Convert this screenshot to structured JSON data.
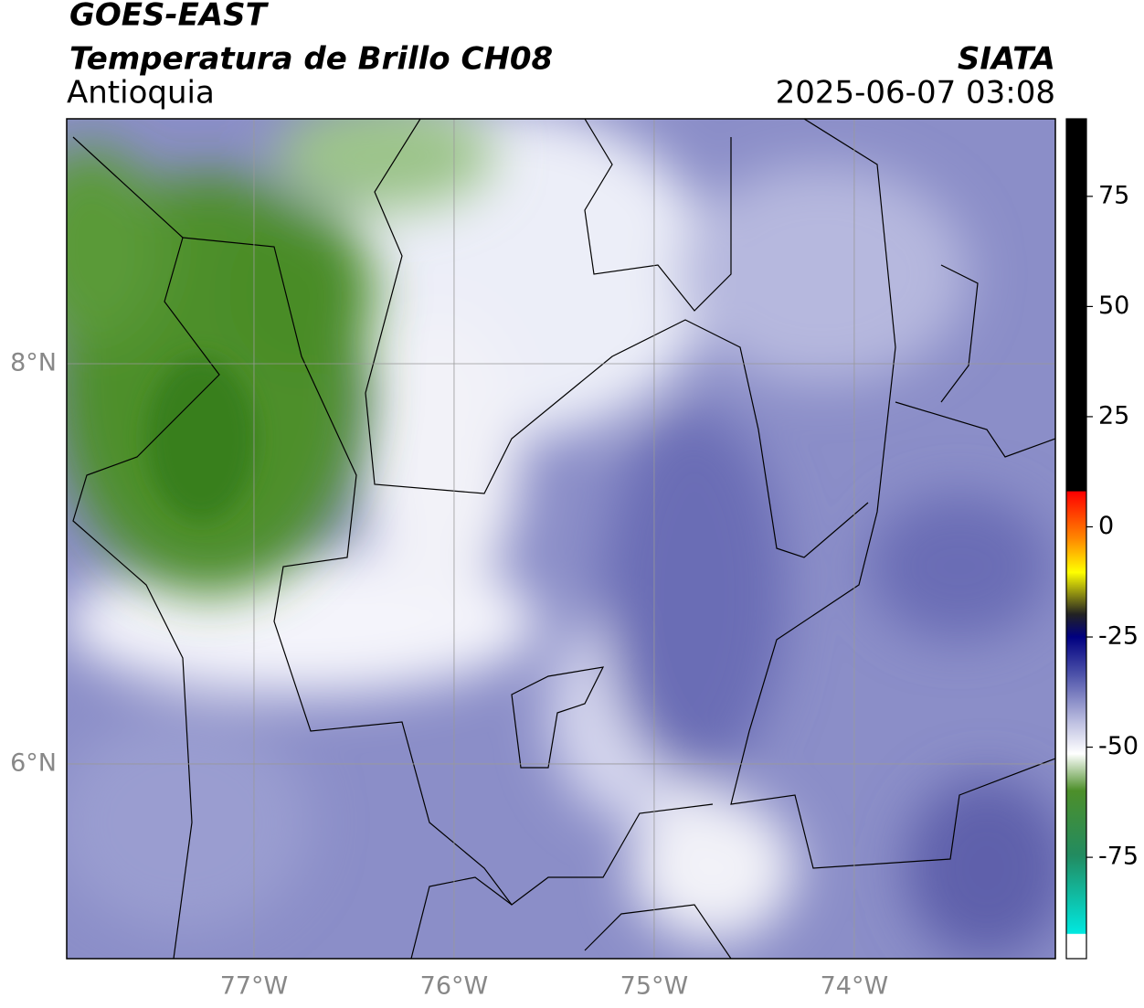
{
  "header": {
    "title": "GOES-EAST",
    "subtitle": "Temperatura de Brillo CH08",
    "region": "Antioquia",
    "source": "SIATA",
    "datetime": "2025-06-07 03:08"
  },
  "map": {
    "lonlim": [
      -77.936,
      -72.995
    ],
    "latlim": [
      5.027,
      9.224
    ],
    "lon_ticks": [
      {
        "value": -77,
        "label": "77°W"
      },
      {
        "value": -76,
        "label": "76°W"
      },
      {
        "value": -75,
        "label": "75°W"
      },
      {
        "value": -74,
        "label": "74°W"
      }
    ],
    "lat_ticks": [
      {
        "value": 8,
        "label": "8°N"
      },
      {
        "value": 6,
        "label": "6°N"
      }
    ]
  },
  "colorbar": {
    "lim": [
      -98,
      92.6
    ],
    "ticks": [
      75,
      50,
      25,
      0,
      -25,
      -50,
      -75
    ]
  }
}
